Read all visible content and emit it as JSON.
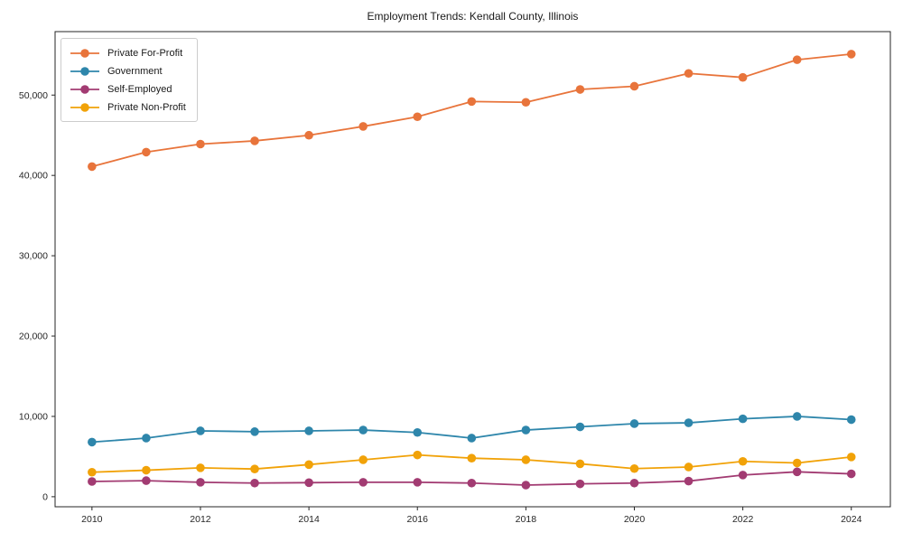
{
  "figure": {
    "title": "Employment Trends: Kendall County, Illinois"
  },
  "chart_data": {
    "type": "line",
    "title": "Employment Trends: Kendall County, Illinois",
    "xlabel": "",
    "ylabel": "",
    "x": [
      2010,
      2011,
      2012,
      2013,
      2014,
      2015,
      2016,
      2017,
      2018,
      2019,
      2020,
      2021,
      2022,
      2023,
      2024
    ],
    "x_ticks": [
      2010,
      2012,
      2014,
      2016,
      2018,
      2020,
      2022,
      2024
    ],
    "x_tick_labels": [
      "2010",
      "2012",
      "2014",
      "2016",
      "2018",
      "2020",
      "2022",
      "2024"
    ],
    "y_ticks": [
      0,
      10000,
      20000,
      30000,
      40000,
      50000
    ],
    "y_tick_labels": [
      "0",
      "10,000",
      "20,000",
      "30,000",
      "40,000",
      "50,000"
    ],
    "xlim": [
      2009.32,
      2024.72
    ],
    "ylim": [
      -1250,
      57900
    ],
    "grid": false,
    "legend_position": "upper-left",
    "axis_color": "#262626",
    "series": [
      {
        "name": "Private For-Profit",
        "color": "#e8743b",
        "values": [
          41100,
          42900,
          43900,
          44300,
          45000,
          46100,
          47300,
          49200,
          49100,
          50700,
          51100,
          52700,
          52200,
          54400,
          55100
        ]
      },
      {
        "name": "Government",
        "color": "#2e86ab",
        "values": [
          6800,
          7300,
          8200,
          8100,
          8200,
          8300,
          8000,
          7300,
          8300,
          8700,
          9100,
          9200,
          9700,
          10000,
          9600
        ]
      },
      {
        "name": "Self-Employed",
        "color": "#a23b72",
        "values": [
          1900,
          2000,
          1800,
          1700,
          1750,
          1800,
          1800,
          1700,
          1450,
          1600,
          1700,
          1950,
          2700,
          3100,
          2850
        ]
      },
      {
        "name": "Private Non-Profit",
        "color": "#f1a208",
        "values": [
          3050,
          3300,
          3600,
          3450,
          4000,
          4600,
          5200,
          4800,
          4600,
          4100,
          3500,
          3700,
          4400,
          4200,
          4950
        ]
      }
    ]
  }
}
